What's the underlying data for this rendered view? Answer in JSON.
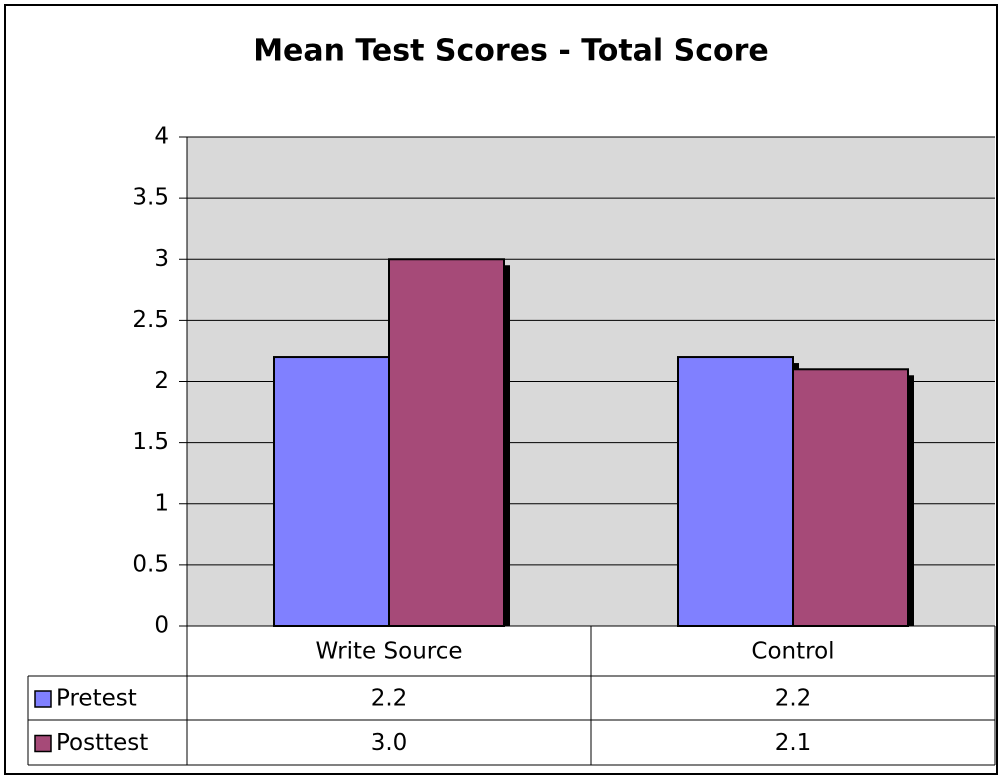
{
  "chart_data": {
    "type": "bar",
    "title": "Mean Test Scores - Total Score",
    "categories": [
      "Write Source",
      "Control"
    ],
    "series": [
      {
        "name": "Pretest",
        "color": "#8080ff",
        "values": [
          2.2,
          2.2
        ]
      },
      {
        "name": "Posttest",
        "color": "#a64a78",
        "values": [
          3.0,
          2.1
        ],
        "value_labels": [
          "3.0",
          "2.1"
        ]
      }
    ],
    "ylim": [
      0,
      4
    ],
    "yticks": [
      0,
      0.5,
      1,
      1.5,
      2,
      2.5,
      3,
      3.5,
      4
    ],
    "grid": true,
    "legend": "table"
  }
}
